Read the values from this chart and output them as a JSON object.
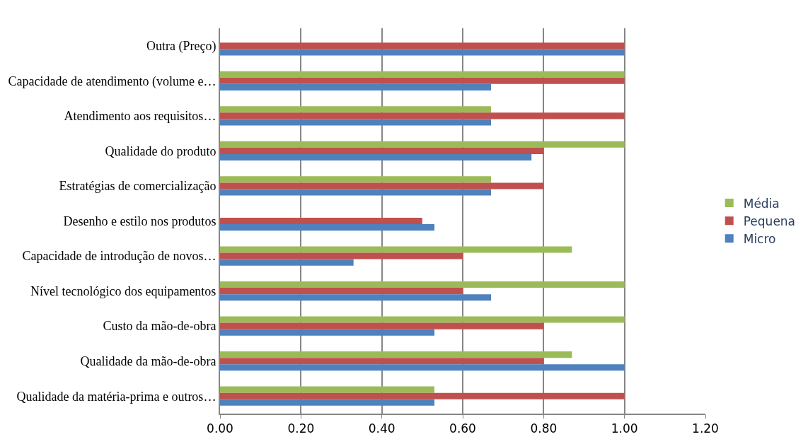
{
  "chart_data": {
    "type": "bar",
    "orientation": "horizontal",
    "categories": [
      "Outra (Preço)",
      "Capacidade de atendimento (volume e…",
      "Atendimento aos requisitos…",
      "Qualidade do produto",
      "Estratégias de comercialização",
      "Desenho e estilo nos produtos",
      "Capacidade de introdução de novos…",
      "Nível tecnológico dos equipamentos",
      "Custo da mão-de-obra",
      "Qualidade da mão-de-obra",
      "Qualidade da matéria-prima e outros…"
    ],
    "series": [
      {
        "name": "Média",
        "color": "#9bbb59",
        "values": [
          null,
          1.0,
          0.67,
          1.0,
          0.67,
          null,
          0.87,
          1.0,
          1.0,
          0.87,
          0.53
        ]
      },
      {
        "name": "Pequena",
        "color": "#c0504d",
        "values": [
          1.0,
          1.0,
          1.0,
          0.8,
          0.8,
          0.5,
          0.6,
          0.6,
          0.8,
          0.8,
          1.0
        ]
      },
      {
        "name": "Micro",
        "color": "#4f81bd",
        "values": [
          1.0,
          0.67,
          0.67,
          0.77,
          0.67,
          0.53,
          0.33,
          0.67,
          0.53,
          1.0,
          0.53
        ]
      }
    ],
    "xlim": [
      0,
      1.2
    ],
    "xticks": [
      {
        "value": 0,
        "label": "0.00"
      },
      {
        "value": 0.2,
        "label": "0.20"
      },
      {
        "value": 0.4,
        "label": "0.40"
      },
      {
        "value": 0.6,
        "label": "0.60"
      },
      {
        "value": 0.8,
        "label": "0.80"
      },
      {
        "value": 1.0,
        "label": "1.00"
      },
      {
        "value": 1.2,
        "label": "1.20"
      }
    ],
    "grid": "x",
    "legend": "right"
  }
}
